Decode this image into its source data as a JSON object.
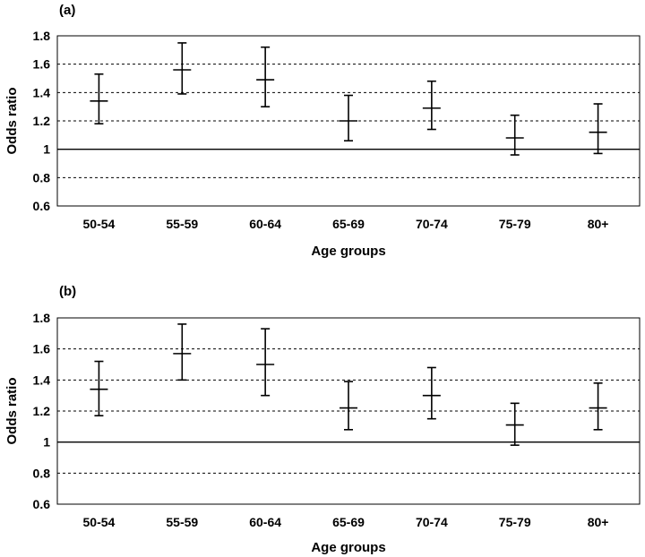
{
  "chart_data": [
    {
      "type": "errorbar",
      "panel_label": "(a)",
      "xlabel": "Age groups",
      "ylabel": "Odds ratio",
      "categories": [
        "50-54",
        "55-59",
        "60-64",
        "65-69",
        "70-74",
        "75-79",
        "80+"
      ],
      "estimates": [
        1.34,
        1.56,
        1.49,
        1.2,
        1.29,
        1.08,
        1.12
      ],
      "lower": [
        1.18,
        1.39,
        1.3,
        1.06,
        1.14,
        0.96,
        0.97
      ],
      "upper": [
        1.53,
        1.75,
        1.72,
        1.38,
        1.48,
        1.24,
        1.32
      ],
      "ylim": [
        0.6,
        1.8
      ],
      "yticks": [
        "0.6",
        "0.8",
        "1",
        "1.2",
        "1.4",
        "1.6",
        "1.8"
      ],
      "reference_line": 1,
      "grid": true
    },
    {
      "type": "errorbar",
      "panel_label": "(b)",
      "xlabel": "Age groups",
      "ylabel": "Odds ratio",
      "categories": [
        "50-54",
        "55-59",
        "60-64",
        "65-69",
        "70-74",
        "75-79",
        "80+"
      ],
      "estimates": [
        1.34,
        1.57,
        1.5,
        1.22,
        1.3,
        1.11,
        1.22
      ],
      "lower": [
        1.17,
        1.4,
        1.3,
        1.08,
        1.15,
        0.98,
        1.08
      ],
      "upper": [
        1.52,
        1.76,
        1.73,
        1.39,
        1.48,
        1.25,
        1.38
      ],
      "ylim": [
        0.6,
        1.8
      ],
      "yticks": [
        "0.6",
        "0.8",
        "1",
        "1.2",
        "1.4",
        "1.6",
        "1.8"
      ],
      "reference_line": 1,
      "grid": true
    }
  ]
}
